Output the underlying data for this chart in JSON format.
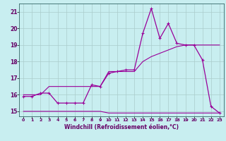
{
  "title": "",
  "xlabel": "Windchill (Refroidissement éolien,°C)",
  "background_color": "#c8eef0",
  "line_color": "#990099",
  "grid_color": "#aacccc",
  "text_color": "#660066",
  "spine_color": "#336666",
  "x_values": [
    0,
    1,
    2,
    3,
    4,
    5,
    6,
    7,
    8,
    9,
    10,
    11,
    12,
    13,
    14,
    15,
    16,
    17,
    18,
    19,
    20,
    21,
    22,
    23
  ],
  "y_actual": [
    15.9,
    15.9,
    16.1,
    16.1,
    15.5,
    15.5,
    15.5,
    15.5,
    16.6,
    16.5,
    17.3,
    17.4,
    17.5,
    17.5,
    19.7,
    21.2,
    19.4,
    20.3,
    19.1,
    19.0,
    19.0,
    18.1,
    15.3,
    14.9
  ],
  "y_min": [
    15.0,
    15.0,
    15.0,
    15.0,
    15.0,
    15.0,
    15.0,
    15.0,
    15.0,
    15.0,
    14.9,
    14.9,
    14.9,
    14.9,
    14.9,
    14.9,
    14.9,
    14.9,
    14.9,
    14.9,
    14.9,
    14.9,
    14.9,
    14.9
  ],
  "y_max": [
    16.0,
    16.0,
    16.0,
    16.5,
    16.5,
    16.5,
    16.5,
    16.5,
    16.5,
    16.5,
    17.4,
    17.4,
    17.4,
    17.4,
    18.0,
    18.3,
    18.5,
    18.7,
    18.9,
    19.0,
    19.0,
    19.0,
    19.0,
    19.0
  ],
  "ylim": [
    14.7,
    21.5
  ],
  "xlim": [
    -0.5,
    23.5
  ],
  "yticks": [
    15,
    16,
    17,
    18,
    19,
    20,
    21
  ],
  "xticks": [
    0,
    1,
    2,
    3,
    4,
    5,
    6,
    7,
    8,
    9,
    10,
    11,
    12,
    13,
    14,
    15,
    16,
    17,
    18,
    19,
    20,
    21,
    22,
    23
  ],
  "xtick_labels": [
    "0",
    "1",
    "2",
    "3",
    "4",
    "5",
    "6",
    "7",
    "8",
    "9",
    "10",
    "11",
    "12",
    "13",
    "14",
    "15",
    "16",
    "17",
    "18",
    "19",
    "20",
    "21",
    "22",
    "23"
  ]
}
